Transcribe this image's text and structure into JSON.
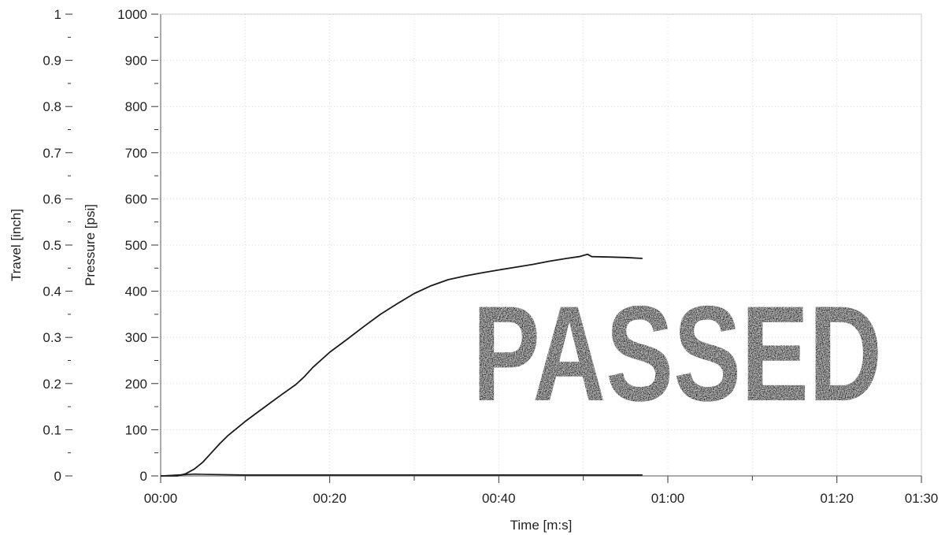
{
  "chart_data": {
    "type": "line",
    "xlabel": "Time [m:s]",
    "x_tick_labels": [
      "00:00",
      "00:20",
      "00:40",
      "01:00",
      "01:20",
      "01:30"
    ],
    "x_ticks_seconds": [
      0,
      20,
      40,
      60,
      80,
      90
    ],
    "xlim_seconds": [
      0,
      90
    ],
    "y_axes": [
      {
        "label": "Travel [inch]",
        "ylim": [
          0,
          1
        ],
        "ticks": [
          0,
          0.1,
          0.2,
          0.3,
          0.4,
          0.5,
          0.6,
          0.7,
          0.8,
          0.9,
          1
        ],
        "tick_labels": [
          "0",
          "0.1",
          "0.2",
          "0.3",
          "0.4",
          "0.5",
          "0.6",
          "0.7",
          "0.8",
          "0.9",
          "1"
        ]
      },
      {
        "label": "Pressure [psi]",
        "ylim": [
          0,
          1000
        ],
        "ticks": [
          0,
          100,
          200,
          300,
          400,
          500,
          600,
          700,
          800,
          900,
          1000
        ],
        "tick_labels": [
          "0",
          "100",
          "200",
          "300",
          "400",
          "500",
          "600",
          "700",
          "800",
          "900",
          "1000"
        ]
      }
    ],
    "series": [
      {
        "axis": "Pressure [psi]",
        "color": "#1a1a1a",
        "points": [
          [
            0,
            0
          ],
          [
            2,
            0
          ],
          [
            3,
            5
          ],
          [
            4,
            15
          ],
          [
            5,
            30
          ],
          [
            6,
            50
          ],
          [
            7,
            70
          ],
          [
            8,
            88
          ],
          [
            10,
            118
          ],
          [
            12,
            145
          ],
          [
            14,
            172
          ],
          [
            16,
            198
          ],
          [
            17,
            215
          ],
          [
            18,
            235
          ],
          [
            20,
            268
          ],
          [
            22,
            295
          ],
          [
            24,
            323
          ],
          [
            26,
            350
          ],
          [
            28,
            373
          ],
          [
            30,
            395
          ],
          [
            32,
            412
          ],
          [
            34,
            425
          ],
          [
            36,
            433
          ],
          [
            38,
            440
          ],
          [
            40,
            446
          ],
          [
            42,
            452
          ],
          [
            44,
            458
          ],
          [
            46,
            465
          ],
          [
            48,
            471
          ],
          [
            49.5,
            475
          ],
          [
            50.5,
            480
          ],
          [
            51,
            475
          ],
          [
            53,
            474
          ],
          [
            55,
            473
          ],
          [
            57,
            471
          ]
        ]
      },
      {
        "axis": "Travel [inch]",
        "color": "#1a1a1a",
        "points": [
          [
            0,
            0
          ],
          [
            4,
            0.004
          ],
          [
            6,
            0.003
          ],
          [
            10,
            0.002
          ],
          [
            20,
            0.002
          ],
          [
            30,
            0.002
          ],
          [
            40,
            0.002
          ],
          [
            50,
            0.002
          ],
          [
            57,
            0.002
          ]
        ]
      }
    ],
    "grid": true,
    "stamp_text": "PASSED"
  }
}
